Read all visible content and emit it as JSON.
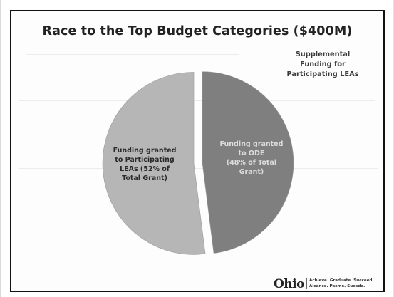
{
  "chart_data": {
    "type": "pie",
    "title": "Race to the Top Budget Categories ($400M)",
    "slices": [
      {
        "label": "Funding granted\nto Participating\nLEAs (52% of\nTotal Grant)",
        "value": 52,
        "color": "#b6b6b6"
      },
      {
        "label": "Funding granted\nto ODE\n(48% of Total\nGrant)",
        "value": 48,
        "color": "#7f7f7f"
      }
    ],
    "annotation": "Supplemental\nFunding for\nParticipating LEAs"
  },
  "footer": {
    "logo": "Ohio",
    "tagline": "Achieve. Graduate. Succeed.\nAlcance. Pasme. Suceda."
  }
}
